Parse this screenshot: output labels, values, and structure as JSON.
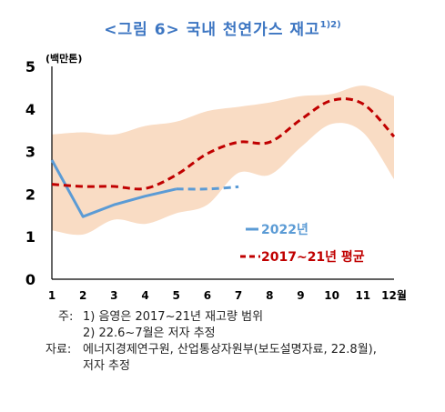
{
  "title": "<그림 6> 국내 천연가스 재고",
  "title_sup": "1)2)",
  "chart_data": {
    "type": "line",
    "unit_label": "(백만톤)",
    "x": [
      1,
      2,
      3,
      4,
      5,
      6,
      7,
      8,
      9,
      10,
      11,
      12
    ],
    "x_tick_labels": [
      "1",
      "2",
      "3",
      "4",
      "5",
      "6",
      "7",
      "8",
      "9",
      "10",
      "11",
      "12월"
    ],
    "y_ticks": [
      "0",
      "1",
      "2",
      "3",
      "4",
      "5"
    ],
    "ylim": [
      0,
      5
    ],
    "band": {
      "label": "음영은 2017~21년 재고량 범위",
      "color": "#f9dcc4",
      "upper": [
        3.4,
        3.45,
        3.4,
        3.6,
        3.7,
        3.95,
        4.05,
        4.15,
        4.3,
        4.35,
        4.55,
        4.3
      ],
      "lower": [
        1.15,
        1.05,
        1.4,
        1.3,
        1.55,
        1.75,
        2.5,
        2.45,
        3.1,
        3.65,
        3.45,
        2.35
      ]
    },
    "series": [
      {
        "name": "2022년",
        "color": "#5b9bd5",
        "style": "solid",
        "values": [
          2.8,
          1.47,
          1.75,
          1.95,
          2.12,
          null,
          null,
          null,
          null,
          null,
          null,
          null
        ]
      },
      {
        "name": "2022년 (추정)",
        "color": "#5b9bd5",
        "style": "dashed",
        "values": [
          null,
          null,
          null,
          null,
          2.12,
          2.12,
          2.17,
          null,
          null,
          null,
          null,
          null
        ]
      },
      {
        "name": "2017~21년 평균",
        "color": "#c00000",
        "style": "dashed",
        "values": [
          2.23,
          2.18,
          2.18,
          2.13,
          2.45,
          2.95,
          3.22,
          3.22,
          3.75,
          4.2,
          4.12,
          3.35
        ]
      }
    ],
    "legend": [
      {
        "label": "2022년",
        "color": "#5b9bd5",
        "style": "solid"
      },
      {
        "label": "2017~21년 평균",
        "color": "#c00000",
        "style": "dashed"
      }
    ]
  },
  "notes": {
    "note_label": "주:",
    "note1": "1) 음영은 2017~21년 재고량 범위",
    "note2": "2) 22.6~7월은 저자 추정",
    "source_label": "자료:",
    "source1": "에너지경제연구원, 산업통상자원부(보도설명자료, 22.8월),",
    "source2": "저자 추정"
  }
}
